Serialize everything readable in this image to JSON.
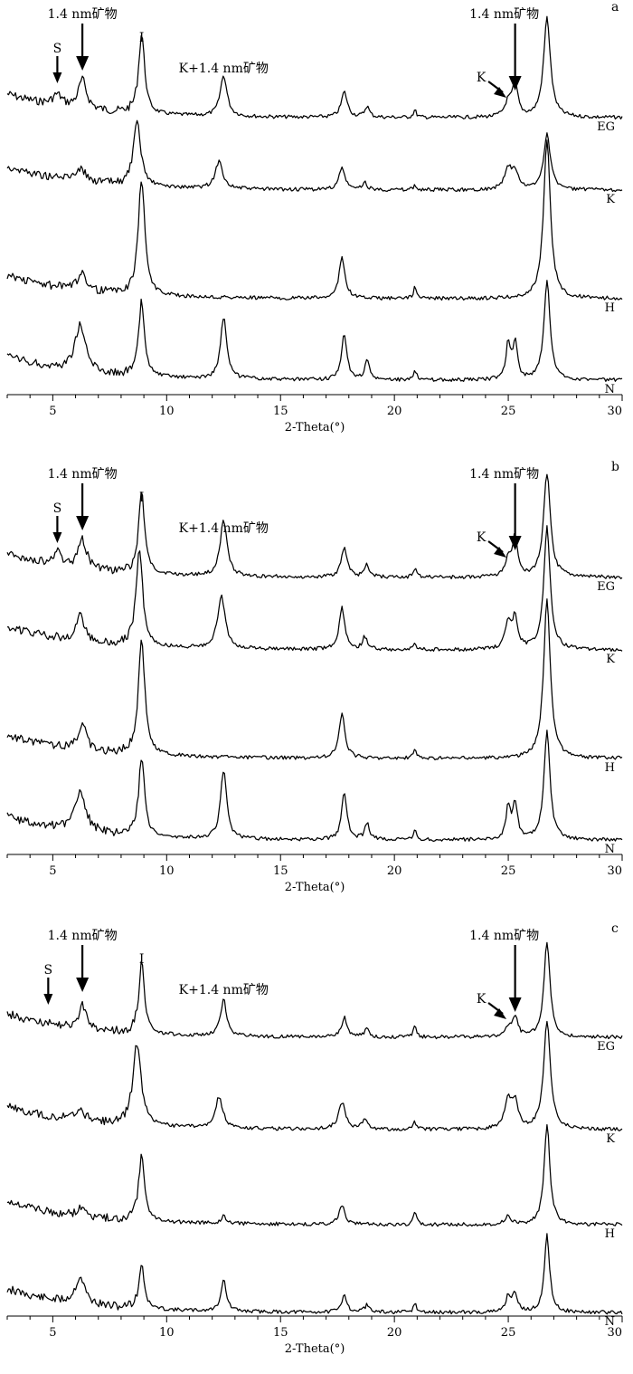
{
  "chart_data": [
    {
      "type": "line",
      "panel_label": "a",
      "xlabel": "2-Theta(°)",
      "xlim": [
        3,
        30
      ],
      "xticks": [
        5,
        10,
        15,
        20,
        25,
        30
      ],
      "series": [
        {
          "name": "EG",
          "baseline": 130,
          "peaks": [
            [
              5.2,
              12,
              0.25
            ],
            [
              6.3,
              32,
              0.22
            ],
            [
              8.9,
              88,
              0.16
            ],
            [
              12.5,
              45,
              0.18
            ],
            [
              17.8,
              28,
              0.16
            ],
            [
              18.8,
              12,
              0.12
            ],
            [
              20.9,
              8,
              0.08
            ],
            [
              25.0,
              16,
              0.18
            ],
            [
              25.3,
              36,
              0.14
            ],
            [
              26.7,
              110,
              0.18
            ]
          ]
        },
        {
          "name": "K",
          "baseline": 210,
          "peaks": [
            [
              6.2,
              14,
              0.3
            ],
            [
              8.7,
              68,
              0.2
            ],
            [
              12.3,
              30,
              0.2
            ],
            [
              17.7,
              24,
              0.16
            ],
            [
              18.7,
              8,
              0.12
            ],
            [
              20.9,
              5,
              0.08
            ],
            [
              25.0,
              22,
              0.2
            ],
            [
              25.3,
              18,
              0.16
            ],
            [
              26.7,
              62,
              0.18
            ]
          ]
        },
        {
          "name": "H",
          "baseline": 330,
          "peaks": [
            [
              6.3,
              22,
              0.2
            ],
            [
              8.9,
              130,
              0.17
            ],
            [
              17.7,
              45,
              0.16
            ],
            [
              20.9,
              12,
              0.08
            ],
            [
              26.7,
              175,
              0.18
            ]
          ]
        },
        {
          "name": "N",
          "baseline": 420,
          "peaks": [
            [
              6.2,
              52,
              0.28
            ],
            [
              8.9,
              82,
              0.15
            ],
            [
              12.5,
              68,
              0.16
            ],
            [
              17.8,
              50,
              0.14
            ],
            [
              18.8,
              22,
              0.12
            ],
            [
              20.9,
              12,
              0.08
            ],
            [
              25.0,
              40,
              0.12
            ],
            [
              25.3,
              40,
              0.12
            ],
            [
              26.7,
              110,
              0.16
            ]
          ]
        }
      ],
      "annotations": [
        {
          "text": "1.4 nm矿物",
          "x": 6.3
        },
        {
          "text": "S",
          "x": 5.2
        },
        {
          "text": "I",
          "x": 8.9
        },
        {
          "text": "K+1.4 nm矿物",
          "x": 12.5
        },
        {
          "text": "1.4 nm矿物",
          "x": 25.3
        },
        {
          "text": "K",
          "x": 25.0
        }
      ]
    },
    {
      "type": "line",
      "panel_label": "b",
      "xlabel": "2-Theta(°)",
      "xlim": [
        3,
        30
      ],
      "xticks": [
        5,
        10,
        15,
        20,
        25,
        30
      ],
      "series": [
        {
          "name": "EG",
          "baseline": 130,
          "peaks": [
            [
              5.2,
              14,
              0.25
            ],
            [
              6.3,
              32,
              0.22
            ],
            [
              8.9,
              90,
              0.16
            ],
            [
              12.5,
              62,
              0.18
            ],
            [
              17.8,
              32,
              0.16
            ],
            [
              18.8,
              14,
              0.12
            ],
            [
              20.9,
              10,
              0.08
            ],
            [
              25.0,
              18,
              0.18
            ],
            [
              25.3,
              42,
              0.14
            ],
            [
              26.7,
              115,
              0.18
            ]
          ]
        },
        {
          "name": "K",
          "baseline": 210,
          "peaks": [
            [
              6.2,
              28,
              0.22
            ],
            [
              8.8,
              110,
              0.17
            ],
            [
              12.4,
              58,
              0.2
            ],
            [
              17.7,
              46,
              0.15
            ],
            [
              18.7,
              14,
              0.12
            ],
            [
              20.9,
              8,
              0.08
            ],
            [
              25.0,
              28,
              0.16
            ],
            [
              25.3,
              34,
              0.14
            ],
            [
              26.7,
              135,
              0.17
            ]
          ]
        },
        {
          "name": "H",
          "baseline": 330,
          "peaks": [
            [
              6.3,
              30,
              0.2
            ],
            [
              8.9,
              130,
              0.17
            ],
            [
              17.7,
              48,
              0.16
            ],
            [
              20.9,
              10,
              0.08
            ],
            [
              26.7,
              175,
              0.18
            ]
          ]
        },
        {
          "name": "N",
          "baseline": 420,
          "peaks": [
            [
              6.2,
              45,
              0.28
            ],
            [
              8.9,
              88,
              0.15
            ],
            [
              12.5,
              75,
              0.16
            ],
            [
              17.8,
              52,
              0.14
            ],
            [
              18.8,
              18,
              0.12
            ],
            [
              20.9,
              10,
              0.08
            ],
            [
              25.0,
              36,
              0.12
            ],
            [
              25.3,
              40,
              0.12
            ],
            [
              26.7,
              120,
              0.16
            ]
          ]
        }
      ],
      "annotations": [
        {
          "text": "1.4 nm矿物",
          "x": 6.3
        },
        {
          "text": "S",
          "x": 5.2
        },
        {
          "text": "I",
          "x": 8.9
        },
        {
          "text": "K+1.4 nm矿物",
          "x": 12.5
        },
        {
          "text": "1.4 nm矿物",
          "x": 25.3
        },
        {
          "text": "K",
          "x": 25.0
        }
      ]
    },
    {
      "type": "line",
      "panel_label": "c",
      "xlabel": "2-Theta(°)",
      "xlim": [
        3,
        30
      ],
      "xticks": [
        5,
        10,
        15,
        20,
        25,
        30
      ],
      "series": [
        {
          "name": "EG",
          "baseline": 128,
          "peaks": [
            [
              6.3,
              26,
              0.2
            ],
            [
              8.9,
              78,
              0.15
            ],
            [
              12.5,
              40,
              0.16
            ],
            [
              17.8,
              22,
              0.14
            ],
            [
              18.8,
              10,
              0.12
            ],
            [
              20.9,
              12,
              0.08
            ],
            [
              25.0,
              8,
              0.18
            ],
            [
              25.3,
              22,
              0.14
            ],
            [
              26.7,
              105,
              0.16
            ]
          ]
        },
        {
          "name": "K",
          "baseline": 230,
          "peaks": [
            [
              6.2,
              10,
              0.3
            ],
            [
              8.7,
              90,
              0.22
            ],
            [
              12.3,
              34,
              0.2
            ],
            [
              17.7,
              30,
              0.18
            ],
            [
              18.7,
              12,
              0.12
            ],
            [
              20.9,
              8,
              0.08
            ],
            [
              25.0,
              32,
              0.18
            ],
            [
              25.3,
              28,
              0.15
            ],
            [
              26.7,
              120,
              0.18
            ]
          ]
        },
        {
          "name": "H",
          "baseline": 335,
          "peaks": [
            [
              6.3,
              10,
              0.2
            ],
            [
              8.9,
              75,
              0.15
            ],
            [
              12.5,
              8,
              0.14
            ],
            [
              17.7,
              22,
              0.15
            ],
            [
              20.9,
              16,
              0.07
            ],
            [
              25.0,
              10,
              0.14
            ],
            [
              26.7,
              112,
              0.15
            ]
          ]
        },
        {
          "name": "N",
          "baseline": 432,
          "peaks": [
            [
              6.2,
              30,
              0.25
            ],
            [
              8.9,
              50,
              0.14
            ],
            [
              12.5,
              35,
              0.14
            ],
            [
              17.8,
              20,
              0.13
            ],
            [
              18.8,
              8,
              0.12
            ],
            [
              20.9,
              10,
              0.08
            ],
            [
              25.0,
              18,
              0.13
            ],
            [
              25.3,
              20,
              0.13
            ],
            [
              26.7,
              85,
              0.14
            ]
          ]
        }
      ],
      "annotations": [
        {
          "text": "1.4 nm矿物",
          "x": 6.3
        },
        {
          "text": "S",
          "x": 4.8
        },
        {
          "text": "I",
          "x": 8.9
        },
        {
          "text": "K+1.4 nm矿物",
          "x": 12.5
        },
        {
          "text": "1.4 nm矿物",
          "x": 25.3
        },
        {
          "text": "K",
          "x": 25.0
        }
      ]
    }
  ]
}
